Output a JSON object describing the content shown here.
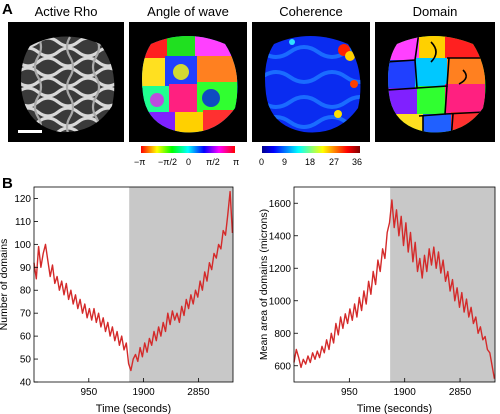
{
  "panels": {
    "A": "A",
    "B": "B"
  },
  "images": [
    {
      "title": "Active Rho",
      "icon": "grayscale-stripes-image"
    },
    {
      "title": "Angle of wave",
      "icon": "rainbow-angle-map-image"
    },
    {
      "title": "Coherence",
      "icon": "jet-coherence-map-image"
    },
    {
      "title": "Domain",
      "icon": "segmented-domain-map-image"
    }
  ],
  "colorbars": {
    "angle": {
      "ticks": [
        "−π",
        "−π/2",
        "0",
        "π/2",
        "π"
      ]
    },
    "coherence": {
      "ticks": [
        "0",
        "9",
        "18",
        "27",
        "36"
      ]
    }
  },
  "colors": {
    "line": "#d42a2a",
    "shade": "#c8c8c8"
  },
  "chart_data": [
    {
      "type": "line",
      "title": "",
      "xlabel": "Time (seconds)",
      "ylabel": "Number of domains",
      "xlim": [
        0,
        3450
      ],
      "ylim": [
        40,
        125
      ],
      "xticks": [
        950,
        1900,
        2850
      ],
      "yticks": [
        40,
        50,
        60,
        70,
        80,
        90,
        100,
        110,
        120
      ],
      "shaded_x_range": [
        1650,
        3450
      ],
      "series": [
        {
          "x": [
            0,
            40,
            80,
            120,
            160,
            200,
            240,
            280,
            320,
            360,
            400,
            440,
            480,
            520,
            560,
            600,
            640,
            680,
            720,
            760,
            800,
            840,
            880,
            920,
            960,
            1000,
            1040,
            1080,
            1120,
            1160,
            1200,
            1240,
            1280,
            1320,
            1360,
            1400,
            1440,
            1480,
            1520,
            1560,
            1600,
            1640,
            1680,
            1720,
            1760,
            1800,
            1840,
            1880,
            1920,
            1960,
            2000,
            2040,
            2080,
            2120,
            2160,
            2200,
            2240,
            2280,
            2320,
            2360,
            2400,
            2440,
            2480,
            2520,
            2560,
            2600,
            2640,
            2680,
            2720,
            2760,
            2800,
            2840,
            2880,
            2920,
            2960,
            3000,
            3040,
            3080,
            3120,
            3160,
            3200,
            3240,
            3280,
            3320,
            3360,
            3400,
            3440
          ],
          "values": [
            92,
            85,
            99,
            90,
            96,
            100,
            93,
            86,
            91,
            83,
            86,
            80,
            84,
            78,
            83,
            76,
            80,
            74,
            78,
            72,
            76,
            70,
            74,
            68,
            72,
            67,
            72,
            66,
            70,
            64,
            68,
            62,
            66,
            60,
            64,
            58,
            62,
            56,
            60,
            54,
            57,
            48,
            45,
            50,
            52,
            49,
            55,
            51,
            57,
            53,
            59,
            56,
            62,
            58,
            64,
            60,
            66,
            62,
            70,
            65,
            71,
            67,
            70,
            66,
            73,
            69,
            76,
            72,
            78,
            74,
            80,
            77,
            84,
            80,
            88,
            84,
            92,
            89,
            96,
            94,
            100,
            98,
            106,
            104,
            113,
            123,
            105
          ]
        }
      ]
    },
    {
      "type": "line",
      "title": "",
      "xlabel": "Time (seconds)",
      "ylabel": "Mean area of domains (microns)",
      "xlim": [
        0,
        3450
      ],
      "ylim": [
        500,
        1700
      ],
      "xticks": [
        950,
        1900,
        2850
      ],
      "yticks": [
        600,
        800,
        1000,
        1200,
        1400,
        1600
      ],
      "shaded_x_range": [
        1650,
        3450
      ],
      "series": [
        {
          "x": [
            0,
            40,
            80,
            120,
            160,
            200,
            240,
            280,
            320,
            360,
            400,
            440,
            480,
            520,
            560,
            600,
            640,
            680,
            720,
            760,
            800,
            840,
            880,
            920,
            960,
            1000,
            1040,
            1080,
            1120,
            1160,
            1200,
            1240,
            1280,
            1320,
            1360,
            1400,
            1440,
            1480,
            1520,
            1560,
            1600,
            1640,
            1680,
            1720,
            1760,
            1800,
            1840,
            1880,
            1920,
            1960,
            2000,
            2040,
            2080,
            2120,
            2160,
            2200,
            2240,
            2280,
            2320,
            2360,
            2400,
            2440,
            2480,
            2520,
            2560,
            2600,
            2640,
            2680,
            2720,
            2760,
            2800,
            2840,
            2880,
            2920,
            2960,
            3000,
            3040,
            3080,
            3120,
            3160,
            3200,
            3240,
            3280,
            3320,
            3360,
            3400,
            3440
          ],
          "values": [
            620,
            700,
            650,
            590,
            640,
            610,
            660,
            620,
            680,
            640,
            690,
            650,
            720,
            680,
            760,
            700,
            800,
            740,
            860,
            790,
            900,
            830,
            920,
            860,
            950,
            880,
            980,
            900,
            1020,
            940,
            1060,
            980,
            1120,
            1040,
            1180,
            1100,
            1250,
            1180,
            1320,
            1260,
            1420,
            1480,
            1620,
            1450,
            1560,
            1400,
            1520,
            1340,
            1480,
            1300,
            1420,
            1240,
            1360,
            1180,
            1260,
            1140,
            1280,
            1180,
            1320,
            1220,
            1330,
            1200,
            1300,
            1170,
            1250,
            1120,
            1180,
            1060,
            1130,
            1000,
            1080,
            960,
            1050,
            930,
            1010,
            900,
            960,
            860,
            900,
            800,
            840,
            760,
            780,
            700,
            680,
            600,
            520
          ]
        }
      ]
    }
  ]
}
